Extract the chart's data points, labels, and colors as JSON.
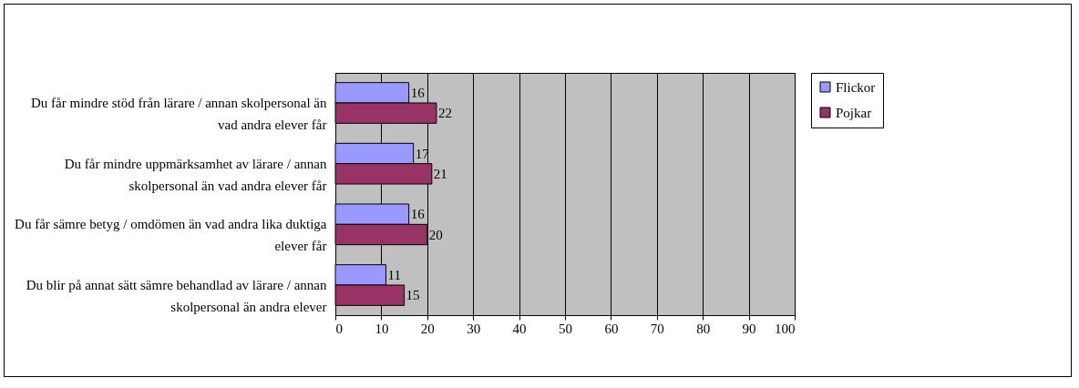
{
  "chart_data": {
    "type": "bar",
    "orientation": "horizontal",
    "categories": [
      "Du får mindre stöd från lärare / annan skolpersonal än vad andra elever får",
      "Du får mindre uppmärksamhet av lärare / annan skolpersonal än vad andra elever får",
      "Du får sämre betyg / omdömen än vad andra lika duktiga elever får",
      "Du blir på annat sätt sämre behandlad av lärare / annan skolpersonal än andra elever"
    ],
    "series": [
      {
        "name": "Flickor",
        "color": "#9999ff",
        "values": [
          16,
          17,
          16,
          11
        ]
      },
      {
        "name": "Pojkar",
        "color": "#993366",
        "values": [
          22,
          21,
          20,
          15
        ]
      }
    ],
    "xlim": [
      0,
      100
    ],
    "xticks": [
      0,
      10,
      20,
      30,
      40,
      50,
      60,
      70,
      80,
      90,
      100
    ],
    "grid": "x",
    "legend": "right",
    "data_labels": true
  }
}
